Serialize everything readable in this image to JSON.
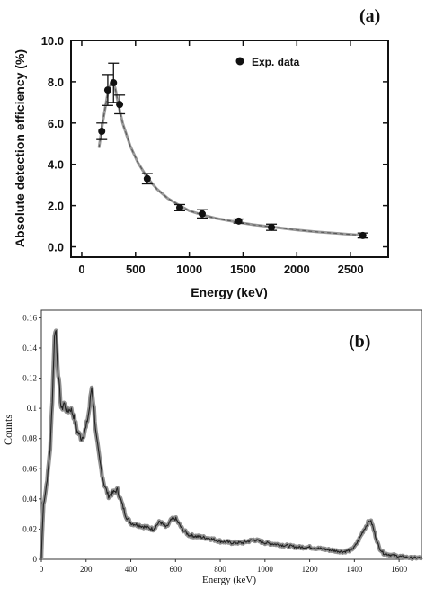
{
  "chart_data": [
    {
      "panel_label": "(a)",
      "type": "scatter",
      "xlabel": "Energy (keV)",
      "ylabel": "Absolute detection efficiency (%)",
      "xlim": [
        -100,
        2850
      ],
      "ylim": [
        -0.5,
        10.0
      ],
      "xticks": [
        0,
        500,
        1000,
        1500,
        2000,
        2500
      ],
      "xtick_labels": [
        "0",
        "500",
        "1000",
        "1500",
        "2000",
        "2500"
      ],
      "yticks": [
        0,
        2,
        4,
        6,
        8,
        10
      ],
      "ytick_labels": [
        "0.0",
        "2.0",
        "4.0",
        "6.0",
        "8.0",
        "10.0"
      ],
      "legend": {
        "label": "Exp. data",
        "position": "top-right"
      },
      "series": [
        {
          "name": "Exp. data",
          "points": [
            {
              "x": 186,
              "y": 5.6,
              "err": 0.4
            },
            {
              "x": 242,
              "y": 7.6,
              "err": 0.75
            },
            {
              "x": 295,
              "y": 7.95,
              "err": 0.95
            },
            {
              "x": 352,
              "y": 6.9,
              "err": 0.45
            },
            {
              "x": 609,
              "y": 3.3,
              "err": 0.25
            },
            {
              "x": 911,
              "y": 1.9,
              "err": 0.15
            },
            {
              "x": 1120,
              "y": 1.6,
              "err": 0.2
            },
            {
              "x": 1460,
              "y": 1.25,
              "err": 0.1
            },
            {
              "x": 1764,
              "y": 0.95,
              "err": 0.15
            },
            {
              "x": 2614,
              "y": 0.55,
              "err": 0.12
            }
          ]
        }
      ],
      "fit_curve": {
        "x": [
          160,
          200,
          240,
          270,
          290,
          310,
          340,
          380,
          450,
          520,
          609,
          700,
          800,
          911,
          1000,
          1120,
          1250,
          1460,
          1600,
          1764,
          2000,
          2200,
          2400,
          2614
        ],
        "y": [
          4.8,
          6.2,
          7.4,
          7.9,
          8.0,
          7.7,
          6.9,
          6.0,
          4.9,
          4.1,
          3.35,
          2.8,
          2.35,
          2.0,
          1.75,
          1.55,
          1.38,
          1.18,
          1.07,
          0.97,
          0.82,
          0.72,
          0.64,
          0.56
        ]
      }
    },
    {
      "panel_label": "(b)",
      "type": "line",
      "xlabel": "Energy (keV)",
      "ylabel": "Counts",
      "xlim": [
        0,
        1700
      ],
      "ylim": [
        0,
        0.165
      ],
      "xticks": [
        0,
        200,
        400,
        600,
        800,
        1000,
        1200,
        1400,
        1600
      ],
      "xtick_labels": [
        "0",
        "200",
        "400",
        "600",
        "800",
        "1000",
        "1200",
        "1400",
        "1600"
      ],
      "yticks": [
        0,
        0.02,
        0.04,
        0.06,
        0.08,
        0.1,
        0.12,
        0.14,
        0.16
      ],
      "ytick_labels": [
        "0",
        "0.02",
        "0.04",
        "0.06",
        "0.08",
        "0.1",
        "0.12",
        "0.14",
        "0.16"
      ],
      "series": [
        {
          "x": [
            0,
            4,
            10,
            20,
            30,
            40,
            50,
            58,
            64,
            70,
            78,
            90,
            100,
            115,
            130,
            145,
            160,
            180,
            200,
            215,
            225,
            235,
            245,
            260,
            280,
            300,
            320,
            340,
            360,
            380,
            400,
            450,
            500,
            530,
            560,
            580,
            600,
            630,
            660,
            700,
            750,
            800,
            850,
            900,
            950,
            1000,
            1050,
            1100,
            1150,
            1200,
            1250,
            1300,
            1350,
            1380,
            1400,
            1420,
            1440,
            1460,
            1470,
            1480,
            1495,
            1510,
            1530,
            1560,
            1600,
            1650,
            1700
          ],
          "y": [
            0.001,
            0.018,
            0.037,
            0.046,
            0.058,
            0.075,
            0.11,
            0.145,
            0.156,
            0.135,
            0.118,
            0.098,
            0.104,
            0.098,
            0.1,
            0.095,
            0.085,
            0.08,
            0.087,
            0.1,
            0.115,
            0.1,
            0.082,
            0.066,
            0.05,
            0.042,
            0.044,
            0.046,
            0.037,
            0.028,
            0.024,
            0.022,
            0.02,
            0.025,
            0.021,
            0.026,
            0.027,
            0.02,
            0.016,
            0.015,
            0.014,
            0.012,
            0.011,
            0.011,
            0.013,
            0.011,
            0.01,
            0.009,
            0.008,
            0.008,
            0.007,
            0.006,
            0.005,
            0.006,
            0.008,
            0.013,
            0.019,
            0.024,
            0.026,
            0.023,
            0.015,
            0.008,
            0.004,
            0.003,
            0.002,
            0.001,
            0.001
          ]
        }
      ]
    }
  ]
}
